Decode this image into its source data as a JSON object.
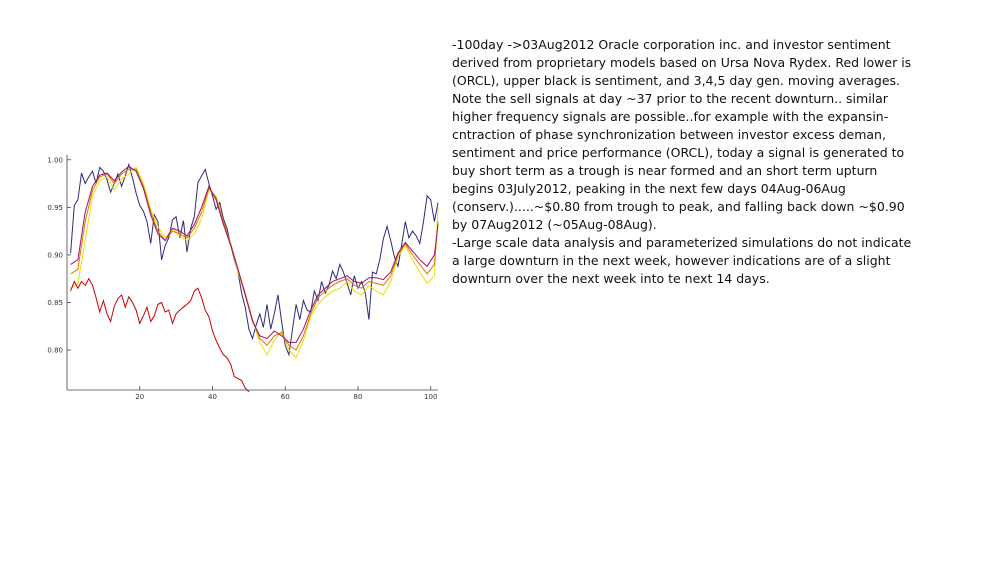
{
  "note": {
    "paragraph_1": " -100day ->03Aug2012 Oracle corporation inc. and investor sentiment derived from proprietary models based on Ursa Nova Rydex. Red lower is (ORCL), upper black is sentiment, and 3,4,5 day gen. moving averages. Note the sell signals at day ~37 prior to the recent downturn.. similar higher frequency signals are possible..for example with the expansin-cntraction of phase synchronization between investor excess deman, sentiment and price performance (ORCL), today a signal is generated to buy short term as a trough is near formed and an short term upturn begins 03July2012, peaking in the next few days 04Aug-06Aug (conserv.).....~$0.80 from trough to peak, and falling back down ~$0.90 by 07Aug2012 (~05Aug-08Aug).",
    "paragraph_2": "-Large scale data analysis and parameterized simulations do not indicate a large downturn in the next week, however indications are of a slight downturn over the next week into te next 14 days."
  },
  "chart_data": {
    "type": "line",
    "xlim": [
      0,
      102
    ],
    "ylim": [
      0.758,
      1.005
    ],
    "x_ticks": [
      20,
      40,
      60,
      80,
      100
    ],
    "y_ticks": [
      0.8,
      0.85,
      0.9,
      0.95,
      1.0
    ],
    "x_tick_labels": [
      "20",
      "40",
      "60",
      "80",
      "100"
    ],
    "y_tick_labels": [
      "0.80",
      "0.85",
      "0.90",
      "0.95",
      "1.00"
    ],
    "grid": false,
    "series": [
      {
        "color": "#2b2b7a",
        "values": [
          [
            1,
            0.902
          ],
          [
            2,
            0.952
          ],
          [
            3,
            0.958
          ],
          [
            4,
            0.986
          ],
          [
            5,
            0.975
          ],
          [
            6,
            0.982
          ],
          [
            7,
            0.988
          ],
          [
            8,
            0.975
          ],
          [
            9,
            0.992
          ],
          [
            10,
            0.988
          ],
          [
            11,
            0.979
          ],
          [
            12,
            0.966
          ],
          [
            13,
            0.975
          ],
          [
            14,
            0.985
          ],
          [
            15,
            0.972
          ],
          [
            16,
            0.983
          ],
          [
            17,
            0.995
          ],
          [
            18,
            0.981
          ],
          [
            19,
            0.965
          ],
          [
            20,
            0.952
          ],
          [
            21,
            0.946
          ],
          [
            22,
            0.935
          ],
          [
            23,
            0.912
          ],
          [
            24,
            0.942
          ],
          [
            25,
            0.935
          ],
          [
            26,
            0.895
          ],
          [
            27,
            0.91
          ],
          [
            28,
            0.918
          ],
          [
            29,
            0.937
          ],
          [
            30,
            0.94
          ],
          [
            31,
            0.918
          ],
          [
            32,
            0.936
          ],
          [
            33,
            0.903
          ],
          [
            34,
            0.928
          ],
          [
            35,
            0.94
          ],
          [
            36,
            0.976
          ],
          [
            37,
            0.983
          ],
          [
            38,
            0.99
          ],
          [
            39,
            0.975
          ],
          [
            40,
            0.962
          ],
          [
            41,
            0.948
          ],
          [
            42,
            0.955
          ],
          [
            43,
            0.938
          ],
          [
            44,
            0.928
          ],
          [
            45,
            0.91
          ],
          [
            46,
            0.895
          ],
          [
            47,
            0.882
          ],
          [
            48,
            0.86
          ],
          [
            49,
            0.845
          ],
          [
            50,
            0.822
          ],
          [
            51,
            0.812
          ],
          [
            52,
            0.826
          ],
          [
            53,
            0.838
          ],
          [
            54,
            0.824
          ],
          [
            55,
            0.848
          ],
          [
            56,
            0.822
          ],
          [
            57,
            0.838
          ],
          [
            58,
            0.858
          ],
          [
            59,
            0.83
          ],
          [
            60,
            0.805
          ],
          [
            61,
            0.795
          ],
          [
            62,
            0.822
          ],
          [
            63,
            0.848
          ],
          [
            64,
            0.832
          ],
          [
            65,
            0.852
          ],
          [
            66,
            0.842
          ],
          [
            67,
            0.84
          ],
          [
            68,
            0.862
          ],
          [
            69,
            0.852
          ],
          [
            70,
            0.872
          ],
          [
            71,
            0.86
          ],
          [
            72,
            0.868
          ],
          [
            73,
            0.883
          ],
          [
            74,
            0.875
          ],
          [
            75,
            0.89
          ],
          [
            76,
            0.882
          ],
          [
            77,
            0.87
          ],
          [
            78,
            0.858
          ],
          [
            79,
            0.878
          ],
          [
            80,
            0.865
          ],
          [
            81,
            0.872
          ],
          [
            82,
            0.86
          ],
          [
            83,
            0.832
          ],
          [
            84,
            0.882
          ],
          [
            85,
            0.88
          ],
          [
            86,
            0.895
          ],
          [
            87,
            0.917
          ],
          [
            88,
            0.93
          ],
          [
            89,
            0.915
          ],
          [
            90,
            0.898
          ],
          [
            91,
            0.888
          ],
          [
            92,
            0.91
          ],
          [
            93,
            0.935
          ],
          [
            94,
            0.918
          ],
          [
            95,
            0.925
          ],
          [
            96,
            0.92
          ],
          [
            97,
            0.912
          ],
          [
            98,
            0.935
          ],
          [
            99,
            0.962
          ],
          [
            100,
            0.958
          ],
          [
            101,
            0.935
          ],
          [
            102,
            0.955
          ]
        ]
      },
      {
        "color": "#e8e000",
        "values": [
          [
            1,
            0.865
          ],
          [
            3,
            0.87
          ],
          [
            5,
            0.915
          ],
          [
            7,
            0.962
          ],
          [
            9,
            0.978
          ],
          [
            11,
            0.982
          ],
          [
            13,
            0.968
          ],
          [
            15,
            0.98
          ],
          [
            17,
            0.985
          ],
          [
            19,
            0.992
          ],
          [
            21,
            0.975
          ],
          [
            23,
            0.948
          ],
          [
            25,
            0.93
          ],
          [
            27,
            0.918
          ],
          [
            29,
            0.928
          ],
          [
            31,
            0.92
          ],
          [
            33,
            0.915
          ],
          [
            35,
            0.922
          ],
          [
            37,
            0.938
          ],
          [
            39,
            0.968
          ],
          [
            41,
            0.962
          ],
          [
            43,
            0.935
          ],
          [
            45,
            0.91
          ],
          [
            47,
            0.882
          ],
          [
            49,
            0.858
          ],
          [
            51,
            0.832
          ],
          [
            53,
            0.808
          ],
          [
            55,
            0.795
          ],
          [
            57,
            0.81
          ],
          [
            59,
            0.82
          ],
          [
            61,
            0.8
          ],
          [
            63,
            0.792
          ],
          [
            65,
            0.81
          ],
          [
            67,
            0.835
          ],
          [
            69,
            0.848
          ],
          [
            71,
            0.856
          ],
          [
            73,
            0.862
          ],
          [
            75,
            0.865
          ],
          [
            77,
            0.872
          ],
          [
            79,
            0.862
          ],
          [
            81,
            0.858
          ],
          [
            83,
            0.868
          ],
          [
            85,
            0.862
          ],
          [
            87,
            0.858
          ],
          [
            89,
            0.872
          ],
          [
            91,
            0.898
          ],
          [
            93,
            0.91
          ],
          [
            95,
            0.895
          ],
          [
            97,
            0.882
          ],
          [
            99,
            0.87
          ],
          [
            101,
            0.878
          ],
          [
            102,
            0.95
          ]
        ]
      },
      {
        "color": "#e07800",
        "values": [
          [
            1,
            0.88
          ],
          [
            3,
            0.885
          ],
          [
            5,
            0.935
          ],
          [
            7,
            0.968
          ],
          [
            9,
            0.982
          ],
          [
            11,
            0.985
          ],
          [
            13,
            0.975
          ],
          [
            15,
            0.985
          ],
          [
            17,
            0.99
          ],
          [
            19,
            0.99
          ],
          [
            21,
            0.972
          ],
          [
            23,
            0.945
          ],
          [
            25,
            0.925
          ],
          [
            27,
            0.915
          ],
          [
            29,
            0.925
          ],
          [
            31,
            0.922
          ],
          [
            33,
            0.918
          ],
          [
            35,
            0.928
          ],
          [
            37,
            0.945
          ],
          [
            39,
            0.97
          ],
          [
            41,
            0.96
          ],
          [
            43,
            0.935
          ],
          [
            45,
            0.912
          ],
          [
            47,
            0.885
          ],
          [
            49,
            0.86
          ],
          [
            51,
            0.832
          ],
          [
            53,
            0.812
          ],
          [
            55,
            0.805
          ],
          [
            57,
            0.815
          ],
          [
            59,
            0.818
          ],
          [
            61,
            0.805
          ],
          [
            63,
            0.8
          ],
          [
            65,
            0.815
          ],
          [
            67,
            0.838
          ],
          [
            69,
            0.855
          ],
          [
            71,
            0.862
          ],
          [
            73,
            0.868
          ],
          [
            75,
            0.872
          ],
          [
            77,
            0.875
          ],
          [
            79,
            0.868
          ],
          [
            81,
            0.865
          ],
          [
            83,
            0.872
          ],
          [
            85,
            0.87
          ],
          [
            87,
            0.868
          ],
          [
            89,
            0.878
          ],
          [
            91,
            0.9
          ],
          [
            93,
            0.912
          ],
          [
            95,
            0.9
          ],
          [
            97,
            0.89
          ],
          [
            99,
            0.88
          ],
          [
            101,
            0.89
          ],
          [
            102,
            0.935
          ]
        ]
      },
      {
        "color": "#a0106a",
        "values": [
          [
            1,
            0.89
          ],
          [
            3,
            0.895
          ],
          [
            5,
            0.945
          ],
          [
            7,
            0.972
          ],
          [
            9,
            0.984
          ],
          [
            11,
            0.986
          ],
          [
            13,
            0.978
          ],
          [
            15,
            0.987
          ],
          [
            17,
            0.993
          ],
          [
            19,
            0.988
          ],
          [
            21,
            0.97
          ],
          [
            23,
            0.942
          ],
          [
            25,
            0.922
          ],
          [
            27,
            0.915
          ],
          [
            29,
            0.928
          ],
          [
            31,
            0.925
          ],
          [
            33,
            0.92
          ],
          [
            35,
            0.932
          ],
          [
            37,
            0.95
          ],
          [
            39,
            0.972
          ],
          [
            41,
            0.958
          ],
          [
            43,
            0.932
          ],
          [
            45,
            0.91
          ],
          [
            47,
            0.885
          ],
          [
            49,
            0.858
          ],
          [
            51,
            0.83
          ],
          [
            53,
            0.815
          ],
          [
            55,
            0.812
          ],
          [
            57,
            0.82
          ],
          [
            59,
            0.815
          ],
          [
            61,
            0.808
          ],
          [
            63,
            0.808
          ],
          [
            65,
            0.822
          ],
          [
            67,
            0.842
          ],
          [
            69,
            0.858
          ],
          [
            71,
            0.865
          ],
          [
            73,
            0.872
          ],
          [
            75,
            0.875
          ],
          [
            77,
            0.878
          ],
          [
            79,
            0.872
          ],
          [
            81,
            0.87
          ],
          [
            83,
            0.876
          ],
          [
            85,
            0.876
          ],
          [
            87,
            0.874
          ],
          [
            89,
            0.882
          ],
          [
            91,
            0.902
          ],
          [
            93,
            0.913
          ],
          [
            95,
            0.904
          ],
          [
            97,
            0.895
          ],
          [
            99,
            0.888
          ],
          [
            101,
            0.9
          ],
          [
            102,
            0.932
          ]
        ]
      },
      {
        "color": "#cc0000",
        "values": [
          [
            1,
            0.862
          ],
          [
            2,
            0.872
          ],
          [
            3,
            0.865
          ],
          [
            4,
            0.872
          ],
          [
            5,
            0.868
          ],
          [
            6,
            0.875
          ],
          [
            7,
            0.868
          ],
          [
            8,
            0.855
          ],
          [
            9,
            0.84
          ],
          [
            10,
            0.852
          ],
          [
            11,
            0.838
          ],
          [
            12,
            0.83
          ],
          [
            13,
            0.846
          ],
          [
            14,
            0.854
          ],
          [
            15,
            0.858
          ],
          [
            16,
            0.845
          ],
          [
            17,
            0.856
          ],
          [
            18,
            0.85
          ],
          [
            19,
            0.842
          ],
          [
            20,
            0.828
          ],
          [
            21,
            0.836
          ],
          [
            22,
            0.845
          ],
          [
            23,
            0.83
          ],
          [
            24,
            0.836
          ],
          [
            25,
            0.848
          ],
          [
            26,
            0.85
          ],
          [
            27,
            0.84
          ],
          [
            28,
            0.842
          ],
          [
            29,
            0.828
          ],
          [
            30,
            0.838
          ],
          [
            31,
            0.842
          ],
          [
            32,
            0.845
          ],
          [
            33,
            0.848
          ],
          [
            34,
            0.852
          ],
          [
            35,
            0.862
          ],
          [
            36,
            0.865
          ],
          [
            37,
            0.855
          ],
          [
            38,
            0.842
          ],
          [
            39,
            0.835
          ],
          [
            40,
            0.82
          ],
          [
            41,
            0.81
          ],
          [
            42,
            0.802
          ],
          [
            43,
            0.795
          ],
          [
            44,
            0.792
          ],
          [
            45,
            0.785
          ],
          [
            46,
            0.772
          ],
          [
            47,
            0.77
          ],
          [
            48,
            0.768
          ],
          [
            49,
            0.76
          ],
          [
            50,
            0.756
          ]
        ]
      }
    ]
  }
}
